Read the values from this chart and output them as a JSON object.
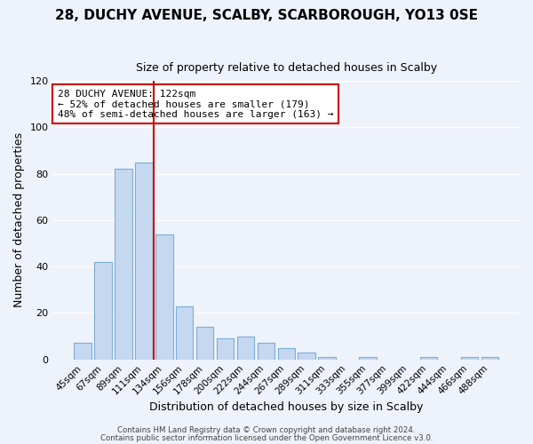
{
  "title": "28, DUCHY AVENUE, SCALBY, SCARBOROUGH, YO13 0SE",
  "subtitle": "Size of property relative to detached houses in Scalby",
  "xlabel": "Distribution of detached houses by size in Scalby",
  "ylabel": "Number of detached properties",
  "bar_labels": [
    "45sqm",
    "67sqm",
    "89sqm",
    "111sqm",
    "134sqm",
    "156sqm",
    "178sqm",
    "200sqm",
    "222sqm",
    "244sqm",
    "267sqm",
    "289sqm",
    "311sqm",
    "333sqm",
    "355sqm",
    "377sqm",
    "399sqm",
    "422sqm",
    "444sqm",
    "466sqm",
    "488sqm"
  ],
  "bar_values": [
    7,
    42,
    82,
    85,
    54,
    23,
    14,
    9,
    10,
    7,
    5,
    3,
    1,
    0,
    1,
    0,
    0,
    1,
    0,
    1,
    1
  ],
  "bar_color": "#c5d8f0",
  "bar_edge_color": "#7aaed6",
  "vline_x": 3.5,
  "vline_color": "#cc0000",
  "annotation_line1": "28 DUCHY AVENUE: 122sqm",
  "annotation_line2": "← 52% of detached houses are smaller (179)",
  "annotation_line3": "48% of semi-detached houses are larger (163) →",
  "annotation_box_color": "#ffffff",
  "annotation_box_edge": "#cc0000",
  "ylim": [
    0,
    120
  ],
  "yticks": [
    0,
    20,
    40,
    60,
    80,
    100,
    120
  ],
  "footer_line1": "Contains HM Land Registry data © Crown copyright and database right 2024.",
  "footer_line2": "Contains public sector information licensed under the Open Government Licence v3.0.",
  "background_color": "#eef2fa",
  "grid_color": "#ffffff",
  "title_fontsize": 11,
  "subtitle_fontsize": 9
}
